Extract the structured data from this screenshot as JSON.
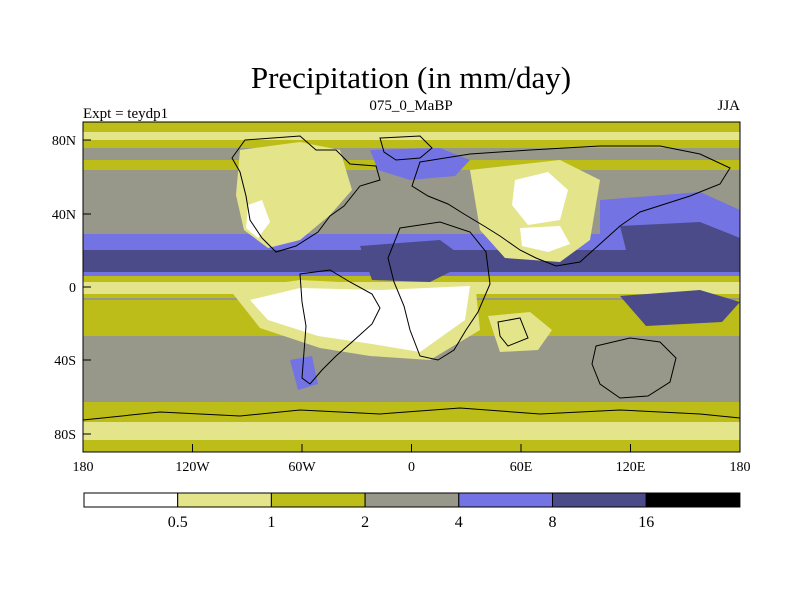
{
  "title": "Precipitation (in mm/day)",
  "left_label": "Expt = teydp1",
  "center_label": "075_0_MaBP",
  "right_label": "JJA",
  "colors": {
    "c0": "#ffffff",
    "c1": "#e4e58a",
    "c2": "#bdbd19",
    "c3": "#98988a",
    "c4": "#7373e3",
    "c5": "#4b4b8a",
    "c6": "#000000"
  },
  "y_ticks": [
    "80N",
    "40N",
    "0",
    "40S",
    "80S"
  ],
  "x_ticks": [
    "180",
    "120W",
    "60W",
    "0",
    "60E",
    "120E",
    "180"
  ],
  "colorbar": {
    "levels": [
      "0.5",
      "1",
      "2",
      "4",
      "8",
      "16"
    ],
    "bins": [
      "#ffffff",
      "#e4e58a",
      "#bdbd19",
      "#98988a",
      "#7373e3",
      "#4b4b8a",
      "#000000"
    ]
  }
}
